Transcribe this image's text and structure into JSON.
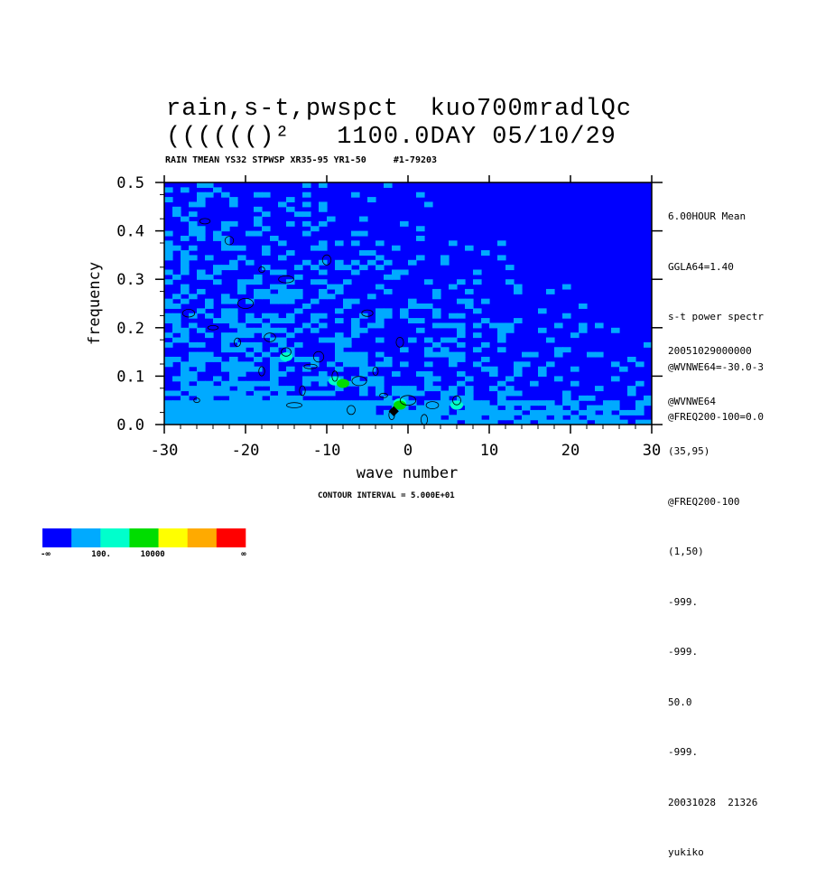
{
  "title_line1": "rain,s-t,pwspct  kuo700mradlQc",
  "title_line2": "(((((()²   1100.0DAY 05/10/29",
  "subtitle": "RAIN TMEAN YS32 STPWSP XR35-95 YR1-50     #1-79203",
  "side_info_top": [
    "6.00HOUR Mean",
    "GGLA64=1.40",
    "s-t power spectr",
    "@WVNWE64=-30.0-3",
    "@FREQ200-100=0.0"
  ],
  "side_info_bottom": [
    "20051029000000",
    "@WVNWE64",
    "(35,95)",
    "@FREQ200-100",
    "(1,50)",
    "-999.",
    "-999.",
    "50.0",
    "-999.",
    "20031028  21326",
    "yukiko"
  ],
  "contour_interval": "CONTOUR INTERVAL = 5.000E+01",
  "colors": {
    "background_level": "#0000ff",
    "level1": "#00aaff",
    "level2": "#00ffcc",
    "level3": "#00dd00",
    "level4": "#ffff00",
    "level5": "#ffaa00",
    "level6": "#ff0000"
  },
  "chart_data": {
    "type": "heatmap",
    "xlabel": "wave number",
    "ylabel": "frequency",
    "xlim": [
      -30,
      30
    ],
    "ylim": [
      0.0,
      0.5
    ],
    "x_ticks": [
      "-30",
      "-20",
      "-10",
      "0",
      "10",
      "20",
      "30"
    ],
    "y_ticks": [
      "0.0",
      "0.1",
      "0.2",
      "0.3",
      "0.4",
      "0.5"
    ],
    "colorbar": {
      "colors": [
        "#0000ff",
        "#00aaff",
        "#00ffcc",
        "#00dd00",
        "#ffff00",
        "#ffaa00",
        "#ff0000"
      ],
      "labels": [
        "-∞",
        "100.",
        "10000",
        "∞"
      ]
    },
    "description": "power spectrum concentrated at low frequency and westward/low wavenumbers; max near wave number 0, frequency < 0.05"
  }
}
